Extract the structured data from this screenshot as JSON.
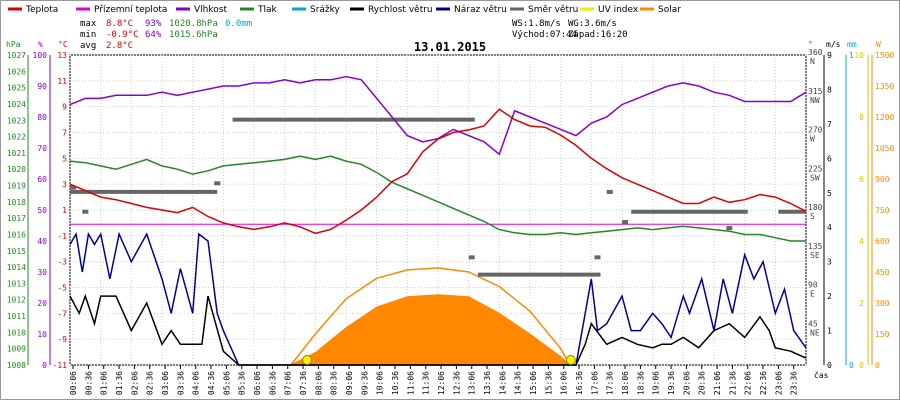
{
  "chart_data": {
    "type": "line",
    "title": "13.01.2015",
    "colors": {
      "teplota": "#dd0000",
      "prizemni": "#dd00dd",
      "vlhkost": "#8800cc",
      "tlak": "#228822",
      "srazky": "#00aacc",
      "rychlost": "#000000",
      "naraz": "#000099",
      "smer": "#666666",
      "uv": "#eeee00",
      "solar": "#ff8800",
      "frame": "#000000",
      "grid": "#cccccc"
    },
    "legend": [
      {
        "label": "Teplota",
        "color": "#dd0000"
      },
      {
        "label": "Přízemní teplota",
        "color": "#dd00dd"
      },
      {
        "label": "Vlhkost",
        "color": "#8800cc"
      },
      {
        "label": "Tlak",
        "color": "#228822"
      },
      {
        "label": "Srážky",
        "color": "#00aacc"
      },
      {
        "label": "Rychlost větru",
        "color": "#000000"
      },
      {
        "label": "Náraz větru",
        "color": "#000099"
      },
      {
        "label": "Směr větru",
        "color": "#666666"
      },
      {
        "label": "UV index",
        "color": "#eeee00"
      },
      {
        "label": "Solar",
        "color": "#ff8800"
      }
    ],
    "stats": {
      "max_label": "max",
      "max_temp": "8.8°C",
      "max_hum": "93%",
      "max_press": "1020.8hPa",
      "max_rain": "0.0mm",
      "min_label": "min",
      "min_temp": "-0.9°C",
      "min_hum": "64%",
      "min_press": "1015.6hPa",
      "avg_label": "avg",
      "avg_temp": "2.8°C",
      "ws": "WS:1.8m/s",
      "wg": "WG:3.6m/s",
      "sunrise": "Východ:07:44",
      "sunset": "Západ:16:20"
    },
    "axis_units": {
      "pressure": "hPa",
      "humidity": "%",
      "temperature": "°C",
      "direction": "°",
      "wind": "m/s",
      "rain": "mm",
      "solar": "W",
      "x": "čas"
    },
    "axes": {
      "pressure": {
        "min": 1008,
        "max": 1027,
        "ticks": [
          "1027",
          "1026",
          "1025",
          "1024",
          "1023",
          "1022",
          "1021",
          "1020",
          "1019",
          "1018",
          "1017",
          "1016",
          "1015",
          "1014",
          "1013",
          "1012",
          "1011",
          "1010",
          "1009",
          "1008"
        ]
      },
      "humidity": {
        "min": 0,
        "max": 100,
        "ticks": [
          "100",
          "90",
          "80",
          "70",
          "60",
          "50",
          "40",
          "30",
          "20",
          "10",
          "0"
        ]
      },
      "temperature": {
        "min": -11,
        "max": 13,
        "ticks": [
          "13",
          "11",
          "9",
          "7",
          "5",
          "3",
          "1",
          "-1",
          "-3",
          "-5",
          "-7",
          "-9",
          "-11"
        ]
      },
      "direction": {
        "min": 0,
        "max": 360,
        "ticks": [
          {
            "deg": "360",
            "dir": "N"
          },
          {
            "deg": "315",
            "dir": "NW"
          },
          {
            "deg": "270",
            "dir": "W"
          },
          {
            "deg": "225",
            "dir": "SW"
          },
          {
            "deg": "180",
            "dir": "S"
          },
          {
            "deg": "135",
            "dir": "SE"
          },
          {
            "deg": "90",
            "dir": "E"
          },
          {
            "deg": "45",
            "dir": "NE"
          }
        ]
      },
      "wind": {
        "min": 0,
        "max": 9,
        "ticks": [
          "9",
          "8",
          "7",
          "6",
          "5",
          "4",
          "3",
          "2",
          "1",
          "0"
        ]
      },
      "rain": {
        "min": 0,
        "max": 1,
        "ticks": [
          "1",
          "0"
        ]
      },
      "uv": {
        "min": 0,
        "max": 10,
        "ticks": [
          "10",
          "8",
          "6",
          "4",
          "2",
          "0"
        ]
      },
      "solar": {
        "min": 0,
        "max": 1500,
        "ticks": [
          "1500",
          "1350",
          "1200",
          "1050",
          "900",
          "750",
          "600",
          "450",
          "300",
          "150",
          "0"
        ]
      }
    },
    "x_ticks": [
      "00:06",
      "00:36",
      "01:06",
      "01:36",
      "02:06",
      "02:36",
      "03:06",
      "03:36",
      "04:06",
      "04:36",
      "05:06",
      "05:36",
      "06:06",
      "06:36",
      "07:06",
      "07:36",
      "08:06",
      "08:36",
      "09:06",
      "09:36",
      "10:06",
      "10:36",
      "11:06",
      "11:36",
      "12:06",
      "12:36",
      "13:06",
      "13:36",
      "14:06",
      "14:36",
      "15:06",
      "15:36",
      "16:06",
      "16:36",
      "17:06",
      "17:36",
      "18:06",
      "18:36",
      "19:06",
      "19:36",
      "20:06",
      "20:36",
      "21:06",
      "21:36",
      "22:06",
      "22:36",
      "23:06",
      "23:36"
    ],
    "x_hours": [
      0,
      1,
      2,
      3,
      4,
      5,
      6,
      7,
      8,
      9,
      10,
      11,
      12,
      13,
      14,
      15,
      16,
      17,
      18,
      19,
      20,
      21,
      22,
      23,
      24
    ],
    "series": [
      {
        "name": "Teplota",
        "axis": "temperature",
        "x": [
          0,
          0.5,
          1,
          1.5,
          2,
          2.5,
          3,
          3.5,
          4,
          4.5,
          5,
          5.5,
          6,
          6.5,
          7,
          7.5,
          8,
          8.5,
          9,
          9.5,
          10,
          10.5,
          11,
          11.5,
          12,
          12.5,
          13,
          13.5,
          14,
          14.5,
          15,
          15.5,
          16,
          16.5,
          17,
          17.5,
          18,
          18.5,
          19,
          19.5,
          20,
          20.5,
          21,
          21.5,
          22,
          22.5,
          23,
          23.5,
          24
        ],
        "y": [
          3,
          2.5,
          2,
          1.8,
          1.5,
          1.2,
          1,
          0.8,
          1.2,
          0.5,
          0,
          -0.3,
          -0.5,
          -0.3,
          0,
          -0.3,
          -0.8,
          -0.5,
          0.2,
          1,
          2,
          3.2,
          3.8,
          5.5,
          6.5,
          7,
          7.2,
          7.5,
          8.8,
          8,
          7.5,
          7.4,
          6.8,
          6,
          5,
          4.2,
          3.5,
          3,
          2.5,
          2,
          1.5,
          1.5,
          2,
          1.6,
          1.8,
          2.2,
          2,
          1.5,
          0.9
        ]
      },
      {
        "name": "Vlhkost",
        "axis": "humidity",
        "x": [
          0,
          0.5,
          1,
          1.5,
          2,
          2.5,
          3,
          3.5,
          4,
          4.5,
          5,
          5.5,
          6,
          6.5,
          7,
          7.5,
          8,
          8.5,
          9,
          9.5,
          10,
          10.5,
          11,
          11.5,
          12,
          12.5,
          13,
          13.5,
          14,
          14.5,
          15,
          15.5,
          16,
          16.5,
          17,
          17.5,
          18,
          18.5,
          19,
          19.5,
          20,
          20.5,
          21,
          21.5,
          22,
          22.5,
          23,
          23.5,
          24
        ],
        "y": [
          84,
          86,
          86,
          87,
          87,
          87,
          88,
          87,
          88,
          89,
          90,
          90,
          91,
          91,
          92,
          91,
          92,
          92,
          93,
          92,
          86,
          80,
          74,
          72,
          73,
          76,
          74,
          72,
          68,
          82,
          80,
          78,
          76,
          74,
          78,
          80,
          84,
          86,
          88,
          90,
          91,
          90,
          88,
          87,
          85,
          85,
          85,
          85,
          88
        ]
      },
      {
        "name": "Tlak",
        "axis": "pressure",
        "x": [
          0,
          0.5,
          1,
          1.5,
          2,
          2.5,
          3,
          3.5,
          4,
          4.5,
          5,
          5.5,
          6,
          6.5,
          7,
          7.5,
          8,
          8.5,
          9,
          9.5,
          10,
          10.5,
          11,
          11.5,
          12,
          12.5,
          13,
          13.5,
          14,
          14.5,
          15,
          15.5,
          16,
          16.5,
          17,
          17.5,
          18,
          18.5,
          19,
          19.5,
          20,
          20.5,
          21,
          21.5,
          22,
          22.5,
          23,
          23.5,
          24
        ],
        "y": [
          1020.5,
          1020.4,
          1020.2,
          1020.0,
          1020.3,
          1020.6,
          1020.2,
          1020.0,
          1019.7,
          1019.9,
          1020.2,
          1020.3,
          1020.4,
          1020.5,
          1020.6,
          1020.8,
          1020.6,
          1020.8,
          1020.5,
          1020.3,
          1019.8,
          1019.2,
          1018.8,
          1018.4,
          1018.0,
          1017.6,
          1017.2,
          1016.8,
          1016.3,
          1016.1,
          1016.0,
          1016.0,
          1016.1,
          1016.0,
          1016.1,
          1016.2,
          1016.3,
          1016.4,
          1016.3,
          1016.4,
          1016.5,
          1016.4,
          1016.3,
          1016.2,
          1016.0,
          1016.0,
          1015.8,
          1015.6,
          1015.6
        ]
      },
      {
        "name": "Přízemní teplota",
        "axis": "temperature",
        "x": [
          0,
          24
        ],
        "y": [
          -0.1,
          -0.1
        ]
      },
      {
        "name": "Rychlost větru",
        "axis": "wind",
        "x": [
          0,
          0.3,
          0.5,
          0.8,
          1.0,
          1.5,
          2.0,
          2.5,
          3.0,
          3.3,
          3.6,
          4.0,
          4.3,
          4.5,
          5.0,
          5.5,
          16.5,
          16.8,
          17.0,
          17.5,
          18.0,
          18.5,
          19.0,
          19.3,
          19.6,
          20.0,
          20.5,
          21.0,
          21.5,
          22.0,
          22.5,
          22.8,
          23.0,
          23.5,
          24.0
        ],
        "y": [
          2.0,
          1.5,
          2.0,
          1.2,
          2.0,
          2.0,
          1.0,
          1.8,
          0.6,
          1.0,
          0.6,
          0.6,
          0.6,
          2.0,
          0.4,
          0,
          0,
          0.6,
          1.2,
          0.6,
          0.8,
          0.6,
          0.5,
          0.6,
          0.6,
          0.8,
          0.5,
          1.0,
          1.2,
          0.8,
          1.4,
          1.0,
          0.5,
          0.4,
          0.2
        ]
      },
      {
        "name": "Náraz větru",
        "axis": "wind",
        "x": [
          0,
          0.2,
          0.4,
          0.6,
          0.8,
          1.0,
          1.3,
          1.6,
          2.0,
          2.5,
          3.0,
          3.3,
          3.6,
          4.0,
          4.2,
          4.5,
          4.8,
          5.0,
          5.5,
          16.5,
          16.8,
          17.0,
          17.2,
          17.5,
          18.0,
          18.3,
          18.6,
          19.0,
          19.3,
          19.6,
          20.0,
          20.2,
          20.6,
          21.0,
          21.3,
          21.6,
          22.0,
          22.3,
          22.6,
          23.0,
          23.3,
          23.6,
          24.0
        ],
        "y": [
          3.5,
          3.8,
          2.7,
          3.8,
          3.5,
          3.8,
          2.5,
          3.8,
          3.0,
          3.8,
          2.5,
          1.5,
          2.8,
          1.5,
          3.8,
          3.6,
          1.5,
          1.0,
          0,
          0,
          1.5,
          2.5,
          1.0,
          1.2,
          2.0,
          1.0,
          1.0,
          1.5,
          1.2,
          0.8,
          2.0,
          1.5,
          2.5,
          1.0,
          2.5,
          1.5,
          3.2,
          2.5,
          3.0,
          1.5,
          2.2,
          1.0,
          0.5
        ]
      },
      {
        "name": "Solar",
        "axis": "solar",
        "x": [
          7.2,
          8,
          9,
          10,
          11,
          12,
          13,
          14,
          15,
          16,
          16.3
        ],
        "y": [
          0,
          60,
          180,
          280,
          330,
          340,
          330,
          250,
          150,
          40,
          0
        ]
      },
      {
        "name": "Solar max",
        "axis": "solar",
        "x": [
          7.2,
          8,
          9,
          10,
          11,
          12,
          13,
          14,
          15,
          16,
          16.3
        ],
        "y": [
          0,
          150,
          320,
          420,
          460,
          470,
          450,
          380,
          260,
          80,
          0
        ]
      }
    ],
    "direction_segments": [
      {
        "start": 0,
        "end": 4.8,
        "deg": 201
      },
      {
        "start": 5.3,
        "end": 13.2,
        "deg": 285
      },
      {
        "start": 13.3,
        "end": 17.3,
        "deg": 105
      },
      {
        "start": 18.3,
        "end": 22.1,
        "deg": 178
      },
      {
        "start": 23.1,
        "end": 24.0,
        "deg": 178
      }
    ],
    "direction_points": [
      {
        "t": 0.1,
        "deg": 206
      },
      {
        "t": 0.5,
        "deg": 178
      },
      {
        "t": 4.8,
        "deg": 211
      },
      {
        "t": 13.1,
        "deg": 125
      },
      {
        "t": 17.2,
        "deg": 125
      },
      {
        "t": 17.6,
        "deg": 201
      },
      {
        "t": 18.1,
        "deg": 166
      },
      {
        "t": 21.5,
        "deg": 159
      }
    ],
    "sun_markers": [
      7.73,
      16.33
    ]
  }
}
